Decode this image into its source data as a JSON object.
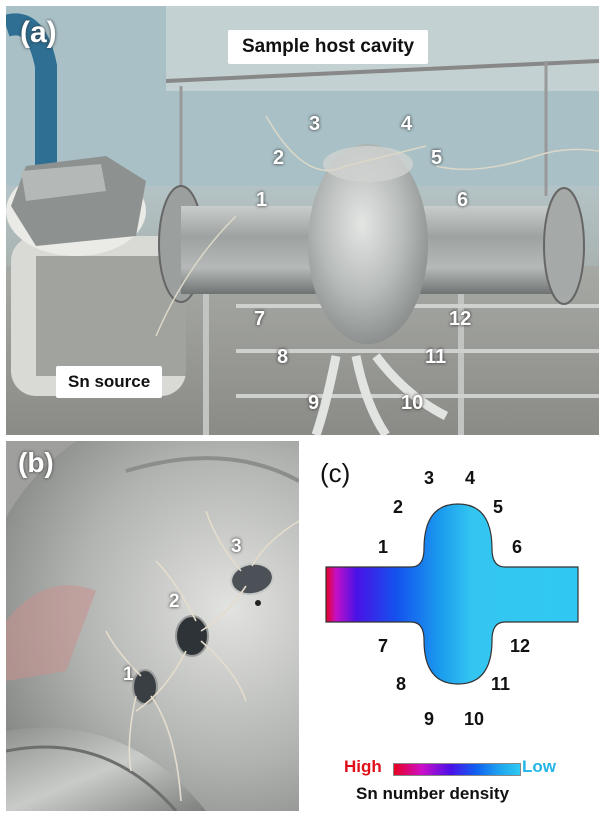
{
  "panel_a": {
    "letter": "(a)",
    "title": "Sample host cavity",
    "source_label": "Sn source",
    "sample_numbers": [
      "1",
      "2",
      "3",
      "4",
      "5",
      "6",
      "7",
      "8",
      "9",
      "10",
      "11",
      "12"
    ]
  },
  "panel_b": {
    "letter": "(b)",
    "sample_numbers": [
      "1",
      "2",
      "3"
    ]
  },
  "panel_c": {
    "letter": "(c)",
    "sample_numbers": [
      "1",
      "2",
      "3",
      "4",
      "5",
      "6",
      "7",
      "8",
      "9",
      "10",
      "11",
      "12"
    ],
    "legend_high": "High",
    "legend_low": "Low",
    "legend_title": "Sn number density",
    "colors": {
      "high": "#e80020",
      "mid": "#1060f0",
      "low": "#30c8f2"
    }
  }
}
